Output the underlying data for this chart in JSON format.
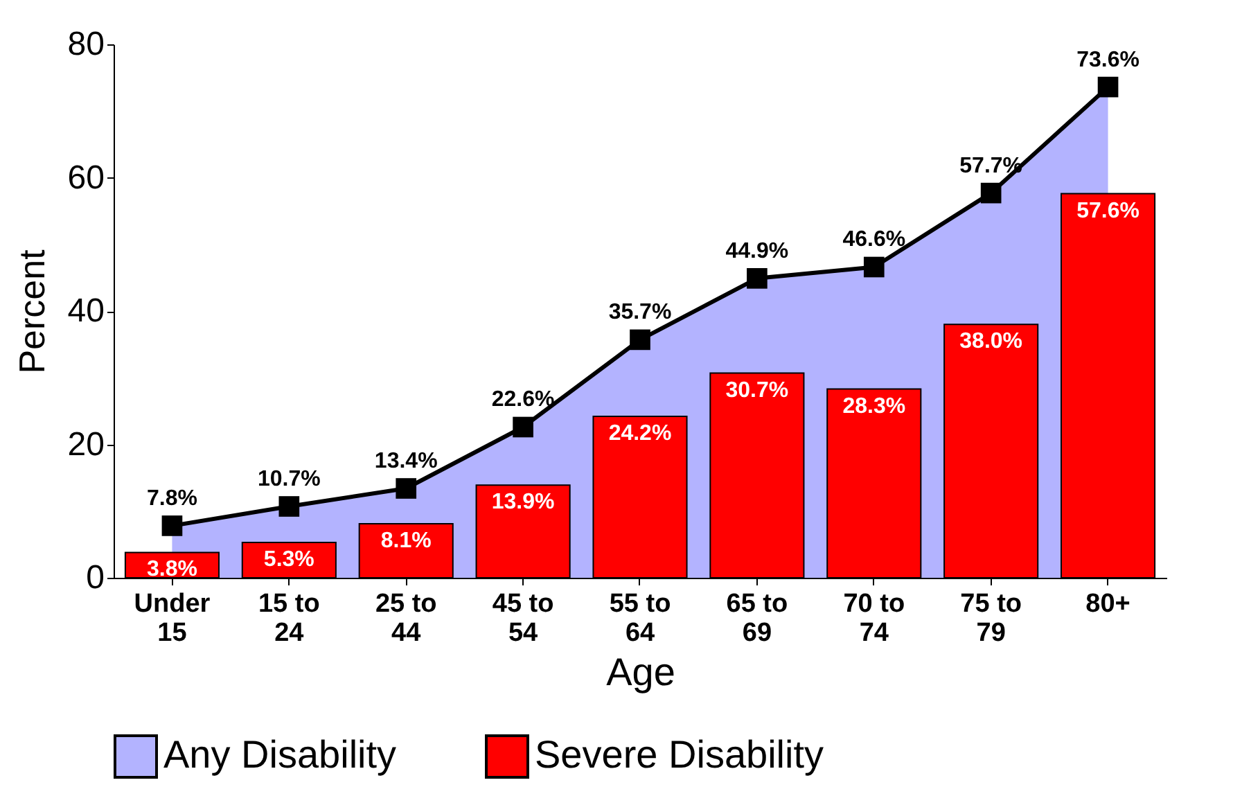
{
  "chart_data": {
    "type": "bar",
    "xlabel": "Age",
    "ylabel": "Percent",
    "categories": [
      "Under 15",
      "15 to 24",
      "25 to 44",
      "45 to 54",
      "55 to 64",
      "65 to 69",
      "70 to 74",
      "75 to 79",
      "80+"
    ],
    "series": [
      {
        "name": "Any Disability",
        "type": "area",
        "color": "#b3b3ff",
        "marker": "square",
        "values": [
          7.8,
          10.7,
          13.4,
          22.6,
          35.7,
          44.9,
          46.6,
          57.7,
          73.6
        ],
        "value_labels": [
          "7.8%",
          "10.7%",
          "13.4%",
          "22.6%",
          "35.7%",
          "44.9%",
          "46.6%",
          "57.7%",
          "73.6%"
        ]
      },
      {
        "name": "Severe Disability",
        "color": "#ff0000",
        "values": [
          3.8,
          5.3,
          8.1,
          13.9,
          24.2,
          30.7,
          28.3,
          38.0,
          57.6
        ],
        "value_labels": [
          "3.8%",
          "5.3%",
          "8.1%",
          "13.9%",
          "24.2%",
          "30.7%",
          "28.3%",
          "38.0%",
          "57.6%"
        ]
      }
    ],
    "ylim": [
      0,
      80
    ],
    "yticks": [
      0,
      20,
      40,
      60,
      80
    ],
    "grid": false,
    "legend": "bottom"
  }
}
